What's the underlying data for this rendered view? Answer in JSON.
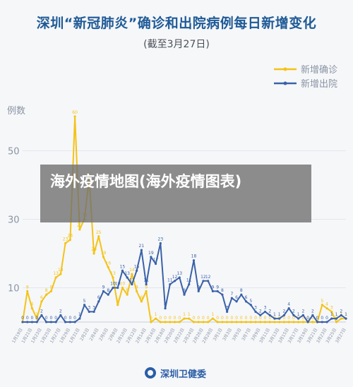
{
  "header": {
    "title": "深圳“新冠肺炎”确诊和出院病例每日新增变化",
    "subtitle": "(截至3月27日)"
  },
  "overlay": {
    "text": "海外疫情地图(海外疫情图表)"
  },
  "footer": {
    "org": "深圳卫健委"
  },
  "colors": {
    "confirmed": "#f3c317",
    "discharged": "#3a62a8",
    "grid": "#e2e6ec",
    "axis_text": "#8a94a4"
  },
  "chart_data": {
    "type": "line",
    "ylabel": "例数",
    "ylim": [
      0,
      60
    ],
    "yticks": [
      10,
      30,
      50
    ],
    "legend_position": "top-right",
    "x": [
      "1/19",
      "1/20",
      "1/21",
      "1/22",
      "1/23",
      "1/24",
      "1/25",
      "1/26",
      "1/27",
      "1/28",
      "1/29",
      "1/30",
      "1/31",
      "2/1",
      "2/2",
      "2/3",
      "2/4",
      "2/5",
      "2/6",
      "2/7",
      "2/8",
      "2/9",
      "2/10",
      "2/11",
      "2/12",
      "2/13",
      "2/14",
      "2/15",
      "2/16",
      "2/17",
      "2/18",
      "2/19",
      "2/20",
      "2/21",
      "2/22",
      "2/23",
      "2/24",
      "2/25",
      "2/26",
      "2/27",
      "2/28",
      "2/29",
      "3/1",
      "3/2",
      "3/3",
      "3/4",
      "3/5",
      "3/6",
      "3/7",
      "3/8",
      "3/9",
      "3/10",
      "3/11",
      "3/12",
      "3/13",
      "3/14",
      "3/15",
      "3/16",
      "3/17",
      "3/18",
      "3/19",
      "3/20",
      "3/21",
      "3/22",
      "3/23",
      "3/24",
      "3/25",
      "3/26",
      "3/27"
    ],
    "x_tick_labels": [
      "1月19日",
      "1月21日",
      "1月23日",
      "1月25日",
      "1月27日",
      "1月29日",
      "1月31日",
      "2月2日",
      "2月4日",
      "2月6日",
      "2月8日",
      "2月10日",
      "2月12日",
      "2月14日",
      "2月16日",
      "2月18日",
      "2月20日",
      "2月22日",
      "2月24日",
      "2月26日",
      "2月28日",
      "3月1日",
      "3月3日",
      "3月5日",
      "3月7日",
      "3月9日",
      "3月11日",
      "3月13日",
      "3月15日",
      "3月17日",
      "3月19日",
      "3月21日",
      "3月23日",
      "3月25日",
      "3月27日"
    ],
    "series": [
      {
        "name": "新增确诊",
        "color": "#f3c317",
        "values": [
          0,
          9,
          4,
          1,
          6,
          8,
          9,
          13,
          14,
          23,
          24,
          60,
          27,
          30,
          42,
          20,
          25,
          19,
          16,
          13,
          5,
          10,
          8,
          14,
          9,
          6,
          9,
          0,
          1,
          0,
          0,
          0,
          0,
          0,
          1,
          1,
          0,
          0,
          0,
          0,
          1,
          0,
          0,
          0,
          0,
          0,
          0,
          0,
          0,
          0,
          0,
          0,
          0,
          0,
          0,
          0,
          0,
          0,
          0,
          0,
          0,
          0,
          0,
          5,
          4,
          3,
          0,
          1,
          1
        ]
      },
      {
        "name": "新增出院",
        "color": "#3a62a8",
        "values": [
          0,
          0,
          0,
          0,
          2,
          0,
          0,
          0,
          2,
          0,
          0,
          0,
          1,
          5,
          3,
          3,
          6,
          9,
          8,
          10,
          10,
          15,
          13,
          11,
          15,
          21,
          11,
          19,
          17,
          23,
          4,
          11,
          12,
          13,
          8,
          11,
          18,
          9,
          12,
          12,
          9,
          9,
          8,
          3,
          7,
          6,
          8,
          6,
          5,
          3,
          2,
          3,
          2,
          1,
          1,
          2,
          4,
          2,
          1,
          2,
          0,
          2,
          0,
          0,
          0,
          1,
          1,
          2,
          1
        ]
      }
    ]
  }
}
